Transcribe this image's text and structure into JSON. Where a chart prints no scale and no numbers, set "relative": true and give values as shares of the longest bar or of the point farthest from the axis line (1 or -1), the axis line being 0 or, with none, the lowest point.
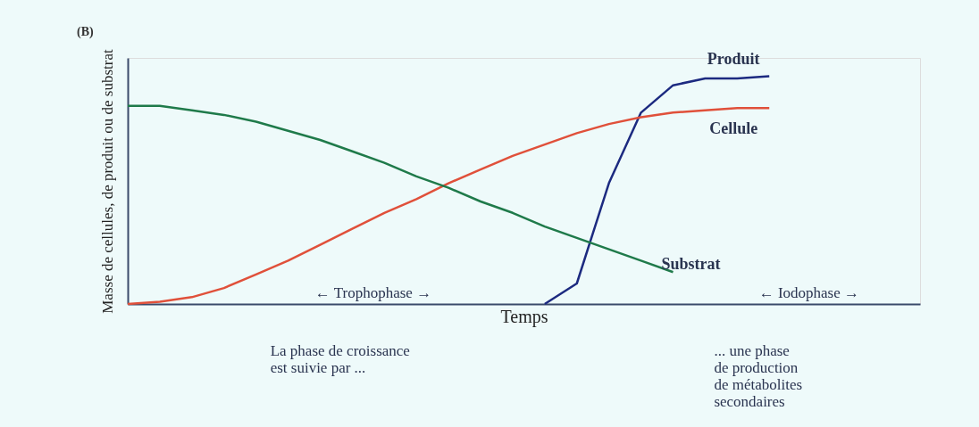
{
  "chart_data": {
    "type": "line",
    "relative": true,
    "title": "(B)",
    "xlabel": "Temps",
    "ylabel": "Masse de cellules, de produit ou de substrat",
    "categories": [
      null,
      null,
      null,
      null,
      null,
      null,
      null,
      null,
      null,
      null,
      null,
      null,
      null,
      null,
      null,
      null,
      null,
      null,
      null,
      null,
      null,
      null,
      null,
      null,
      null
    ],
    "series": [
      {
        "name": "Produit",
        "color": "#1c2a80",
        "values": [
          null,
          null,
          null,
          null,
          null,
          null,
          null,
          null,
          null,
          null,
          null,
          null,
          null,
          0,
          0.09,
          0.53,
          0.84,
          0.96,
          0.99,
          0.99,
          1,
          null,
          null,
          null,
          null
        ]
      },
      {
        "name": "Cellule",
        "color": "#e0503a",
        "values": [
          0,
          0.01,
          0.03,
          0.07,
          0.13,
          0.19,
          0.26,
          0.33,
          0.4,
          0.46,
          0.53,
          0.59,
          0.65,
          0.7,
          0.75,
          0.79,
          0.82,
          0.84,
          0.85,
          0.86,
          0.86,
          null,
          null,
          null,
          null
        ]
      },
      {
        "name": "Substrat",
        "color": "#1f7a4a",
        "values": [
          0.87,
          0.87,
          0.85,
          0.83,
          0.8,
          0.76,
          0.72,
          0.67,
          0.62,
          0.56,
          0.51,
          0.45,
          0.4,
          0.34,
          0.29,
          0.24,
          0.19,
          0.14,
          null,
          null,
          null,
          null,
          null,
          null,
          null
        ]
      }
    ],
    "annotations": [
      "← Trophophase →",
      "← Iodophase →",
      "La phase de croissance\nest suivie par ...",
      "... une phase\nde production\nde métabolites\nsecondaires"
    ],
    "grid": false,
    "tick_labels": false,
    "line_style": "solid",
    "marker": "none"
  }
}
